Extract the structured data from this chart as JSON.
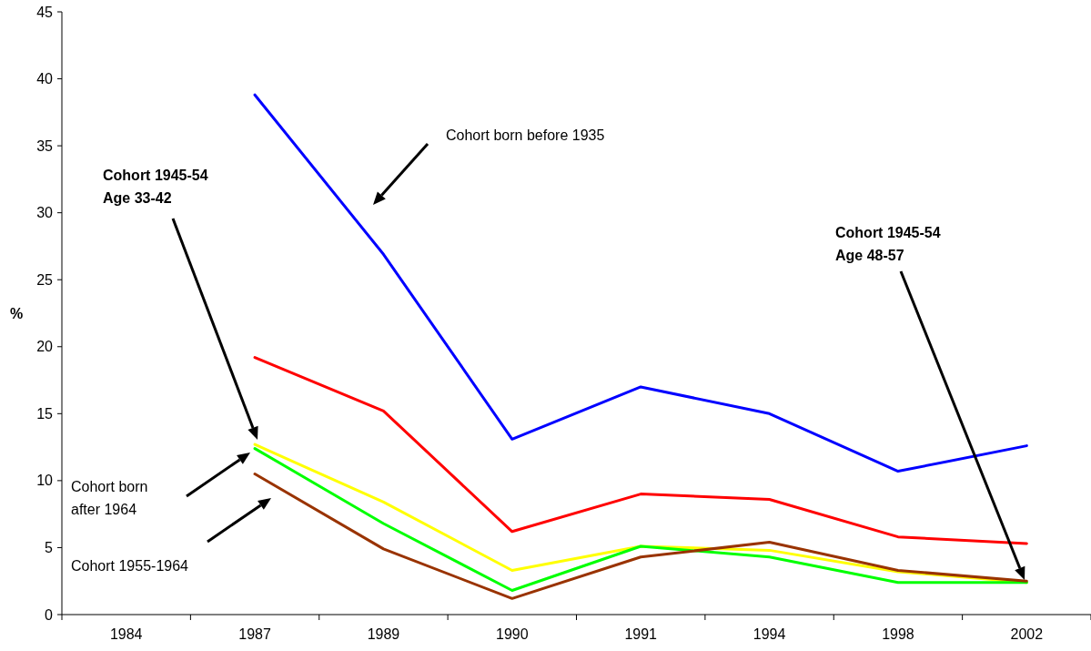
{
  "chart_data": {
    "type": "line",
    "ylabel": "%",
    "categories": [
      "1984",
      "1987",
      "1989",
      "1990",
      "1991",
      "1994",
      "1998",
      "2002"
    ],
    "ylim": [
      0,
      45
    ],
    "yticks": [
      0,
      5,
      10,
      15,
      20,
      25,
      30,
      35,
      40,
      45
    ],
    "grid": false,
    "marker": "none",
    "line_style": "solid",
    "series": [
      {
        "color": "#0000ff",
        "values": [
          null,
          38.8,
          26.9,
          13.1,
          17.0,
          15.0,
          10.7,
          12.6
        ]
      },
      {
        "color": "#ff0000",
        "values": [
          null,
          19.2,
          15.2,
          6.2,
          9.0,
          8.6,
          5.8,
          5.3
        ]
      },
      {
        "color": "#ffff00",
        "values": [
          null,
          12.7,
          8.4,
          3.3,
          5.1,
          4.8,
          3.2,
          2.4
        ]
      },
      {
        "color": "#00ff00",
        "values": [
          null,
          12.4,
          6.8,
          1.8,
          5.1,
          4.3,
          2.4,
          2.4
        ]
      },
      {
        "color": "#993300",
        "values": [
          null,
          10.5,
          4.9,
          1.2,
          4.3,
          5.4,
          3.3,
          2.5
        ]
      }
    ],
    "annotations": [
      "Cohort born before 1935",
      "Cohort 1945-54\nAge 33-42",
      "Cohort 1945-54\nAge 48-57",
      "Cohort born\nafter 1964",
      "Cohort 1955-1964"
    ]
  }
}
